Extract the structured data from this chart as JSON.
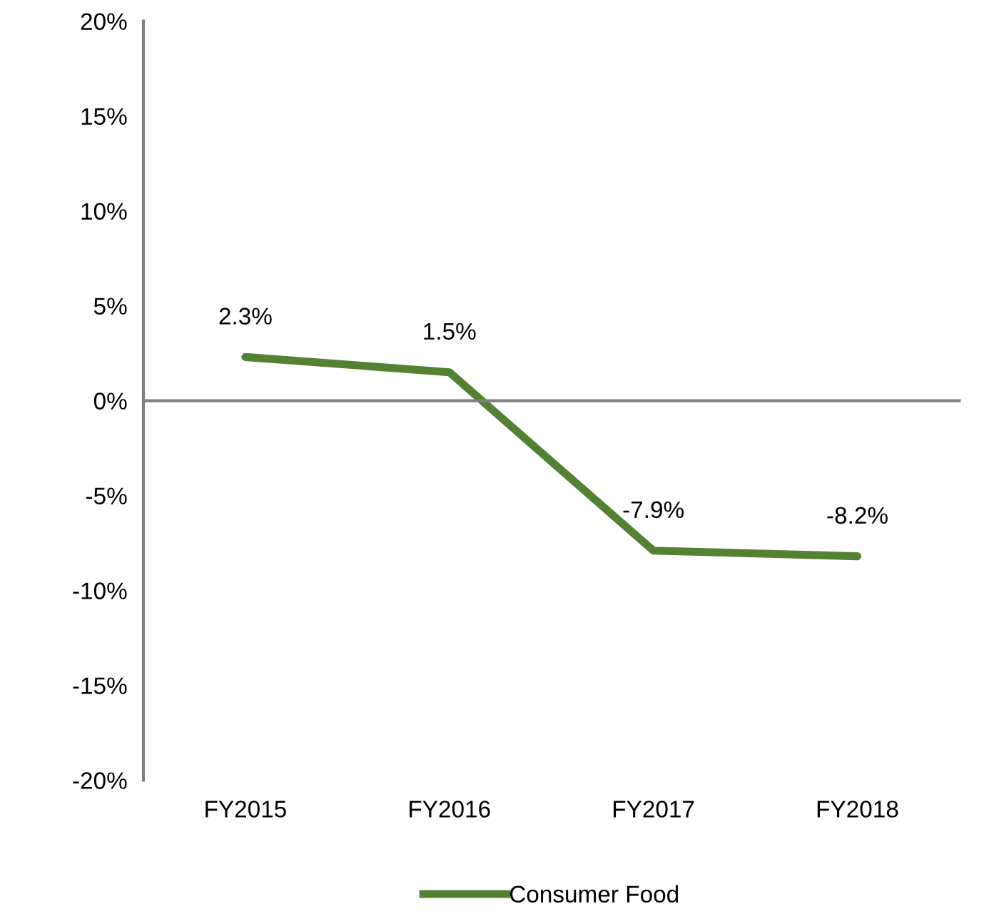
{
  "chart_data": {
    "type": "line",
    "categories": [
      "FY2015",
      "FY2016",
      "FY2017",
      "FY2018"
    ],
    "series": [
      {
        "name": "Consumer Food",
        "color": "#548235",
        "values": [
          2.3,
          1.5,
          -7.9,
          -8.2
        ],
        "value_labels": [
          "2.3%",
          "1.5%",
          "-7.9%",
          "-8.2%"
        ]
      }
    ],
    "ylim": [
      -20,
      20
    ],
    "yticks": [
      {
        "value": -20,
        "label": "-20%"
      },
      {
        "value": -15,
        "label": "-15%"
      },
      {
        "value": -10,
        "label": "-10%"
      },
      {
        "value": -5,
        "label": "-5%"
      },
      {
        "value": 0,
        "label": "0%"
      },
      {
        "value": 5,
        "label": "5%"
      },
      {
        "value": 10,
        "label": "10%"
      },
      {
        "value": 15,
        "label": "15%"
      },
      {
        "value": 20,
        "label": "20%"
      }
    ],
    "legend": "bottom",
    "marker": "none",
    "line_style": "solid"
  }
}
